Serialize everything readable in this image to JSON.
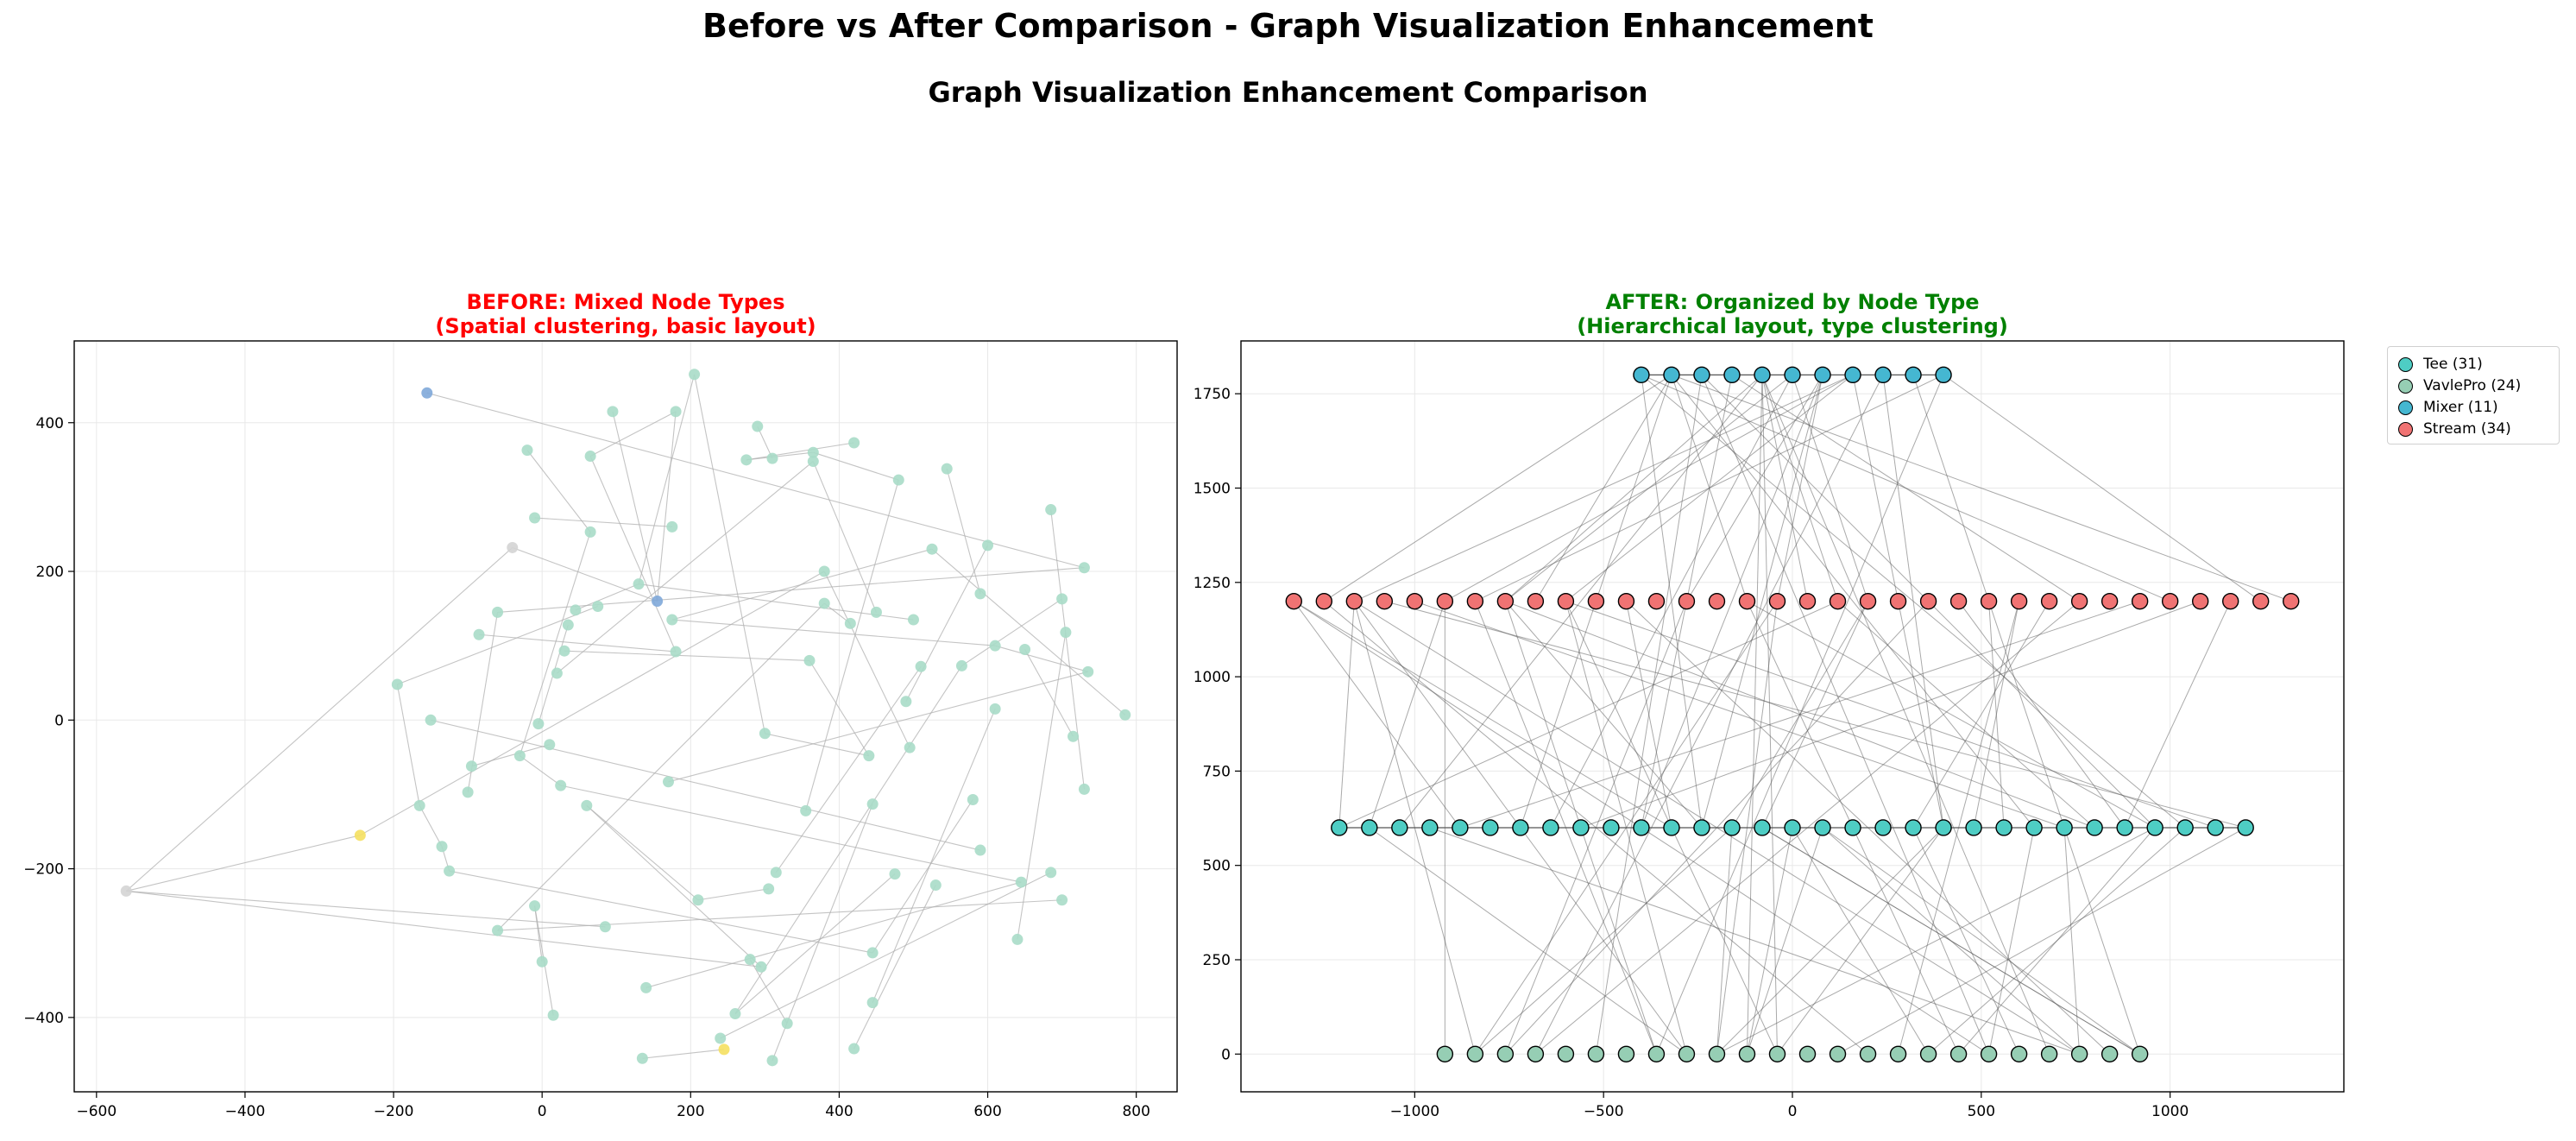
{
  "suptitle": "Before vs After Comparison - Graph Visualization Enhancement",
  "subtitle": "Graph Visualization Enhancement Comparison",
  "colors": {
    "tee": "#4ecdc4",
    "vavlepro": "#96ceb4",
    "mixer": "#45b7d1",
    "stream": "#f07373",
    "before_nodes": "#a8dcc8",
    "edge": "#b0b0b0",
    "grid": "#e8e8e8"
  },
  "before_panel": {
    "title_line1": "BEFORE: Mixed Node Types",
    "title_line2": "(Spatial clustering, basic layout)"
  },
  "after_panel": {
    "title_line1": "AFTER: Organized by Node Type",
    "title_line2": "(Hierarchical layout, type clustering)"
  },
  "legend": [
    {
      "label": "Tee (31)",
      "color": "#4ecdc4"
    },
    {
      "label": "VavlePro (24)",
      "color": "#96ceb4"
    },
    {
      "label": "Mixer (11)",
      "color": "#45b7d1"
    },
    {
      "label": "Stream (34)",
      "color": "#f07373"
    }
  ],
  "chart_data": [
    {
      "type": "scatter",
      "title": "BEFORE: Mixed Node Types\n(Spatial clustering, basic layout)",
      "xlim": [
        -630,
        855
      ],
      "ylim": [
        -500,
        510
      ],
      "xticks": [
        -600,
        -400,
        -200,
        0,
        200,
        400,
        600,
        800
      ],
      "yticks": [
        -400,
        -200,
        0,
        200,
        400
      ],
      "grid": true,
      "nodes": [
        [
          -155,
          440,
          "mixer"
        ],
        [
          205,
          465,
          "n"
        ],
        [
          95,
          415,
          "n"
        ],
        [
          180,
          415,
          "n"
        ],
        [
          -20,
          363,
          "n"
        ],
        [
          65,
          355,
          "n"
        ],
        [
          290,
          395,
          "n"
        ],
        [
          275,
          350,
          "n"
        ],
        [
          310,
          352,
          "n"
        ],
        [
          365,
          360,
          "n"
        ],
        [
          365,
          348,
          "n"
        ],
        [
          420,
          373,
          "n"
        ],
        [
          480,
          323,
          "n"
        ],
        [
          545,
          338,
          "n"
        ],
        [
          685,
          283,
          "n"
        ],
        [
          -10,
          272,
          "n"
        ],
        [
          65,
          253,
          "n"
        ],
        [
          175,
          260,
          "n"
        ],
        [
          -40,
          232,
          "gray"
        ],
        [
          525,
          230,
          "n"
        ],
        [
          600,
          235,
          "n"
        ],
        [
          730,
          205,
          "n"
        ],
        [
          380,
          200,
          "n"
        ],
        [
          130,
          183,
          "n"
        ],
        [
          155,
          160,
          "mixer"
        ],
        [
          590,
          170,
          "n"
        ],
        [
          700,
          163,
          "n"
        ],
        [
          -60,
          145,
          "n"
        ],
        [
          45,
          148,
          "n"
        ],
        [
          75,
          153,
          "n"
        ],
        [
          380,
          157,
          "n"
        ],
        [
          450,
          145,
          "n"
        ],
        [
          35,
          128,
          "n"
        ],
        [
          175,
          135,
          "n"
        ],
        [
          500,
          135,
          "n"
        ],
        [
          -85,
          115,
          "n"
        ],
        [
          705,
          118,
          "n"
        ],
        [
          415,
          130,
          "n"
        ],
        [
          30,
          93,
          "n"
        ],
        [
          180,
          92,
          "n"
        ],
        [
          610,
          100,
          "n"
        ],
        [
          650,
          95,
          "n"
        ],
        [
          360,
          80,
          "n"
        ],
        [
          510,
          72,
          "n"
        ],
        [
          565,
          73,
          "n"
        ],
        [
          -195,
          48,
          "n"
        ],
        [
          20,
          63,
          "n"
        ],
        [
          735,
          65,
          "n"
        ],
        [
          490,
          25,
          "n"
        ],
        [
          610,
          15,
          "n"
        ],
        [
          785,
          7,
          "n"
        ],
        [
          -150,
          0,
          "n"
        ],
        [
          -5,
          -5,
          "n"
        ],
        [
          300,
          -18,
          "n"
        ],
        [
          715,
          -22,
          "n"
        ],
        [
          10,
          -33,
          "n"
        ],
        [
          495,
          -37,
          "n"
        ],
        [
          -30,
          -48,
          "n"
        ],
        [
          440,
          -48,
          "n"
        ],
        [
          -95,
          -62,
          "n"
        ],
        [
          170,
          -83,
          "n"
        ],
        [
          25,
          -88,
          "n"
        ],
        [
          -100,
          -97,
          "n"
        ],
        [
          730,
          -93,
          "n"
        ],
        [
          580,
          -107,
          "n"
        ],
        [
          -165,
          -115,
          "n"
        ],
        [
          60,
          -115,
          "n"
        ],
        [
          445,
          -113,
          "n"
        ],
        [
          355,
          -122,
          "n"
        ],
        [
          -245,
          -155,
          "yellow"
        ],
        [
          -135,
          -170,
          "n"
        ],
        [
          590,
          -175,
          "n"
        ],
        [
          -125,
          -203,
          "n"
        ],
        [
          315,
          -205,
          "n"
        ],
        [
          475,
          -207,
          "n"
        ],
        [
          685,
          -205,
          "n"
        ],
        [
          645,
          -218,
          "n"
        ],
        [
          530,
          -222,
          "n"
        ],
        [
          -560,
          -230,
          "gray"
        ],
        [
          305,
          -227,
          "n"
        ],
        [
          700,
          -242,
          "n"
        ],
        [
          210,
          -242,
          "n"
        ],
        [
          -10,
          -250,
          "n"
        ],
        [
          85,
          -278,
          "n"
        ],
        [
          -60,
          -283,
          "n"
        ],
        [
          640,
          -295,
          "n"
        ],
        [
          445,
          -313,
          "n"
        ],
        [
          0,
          -325,
          "n"
        ],
        [
          280,
          -322,
          "n"
        ],
        [
          295,
          -332,
          "n"
        ],
        [
          140,
          -360,
          "n"
        ],
        [
          445,
          -380,
          "n"
        ],
        [
          15,
          -397,
          "n"
        ],
        [
          260,
          -395,
          "n"
        ],
        [
          330,
          -408,
          "n"
        ],
        [
          240,
          -428,
          "n"
        ],
        [
          420,
          -442,
          "n"
        ],
        [
          245,
          -443,
          "yellow"
        ],
        [
          135,
          -455,
          "n"
        ],
        [
          310,
          -458,
          "n"
        ]
      ]
    },
    {
      "type": "scatter",
      "title": "AFTER: Organized by Node Type\n(Hierarchical layout, type clustering)",
      "xlim": [
        -1460,
        1460
      ],
      "ylim": [
        -100,
        1890
      ],
      "xticks": [
        -1000,
        -500,
        0,
        500,
        1000
      ],
      "yticks": [
        0,
        250,
        500,
        750,
        1000,
        1250,
        1500,
        1750
      ],
      "grid": true,
      "layers": [
        {
          "type": "mixer",
          "y": 1800,
          "count": 11,
          "x_start": -400,
          "step": 80
        },
        {
          "type": "stream",
          "y": 1200,
          "count": 34,
          "x_start": -1320,
          "step": 80
        },
        {
          "type": "tee",
          "y": 600,
          "count": 31,
          "x_start": -1200,
          "step": 80
        },
        {
          "type": "vavlepro",
          "y": 0,
          "count": 24,
          "x_start": -920,
          "step": 80
        }
      ]
    }
  ]
}
